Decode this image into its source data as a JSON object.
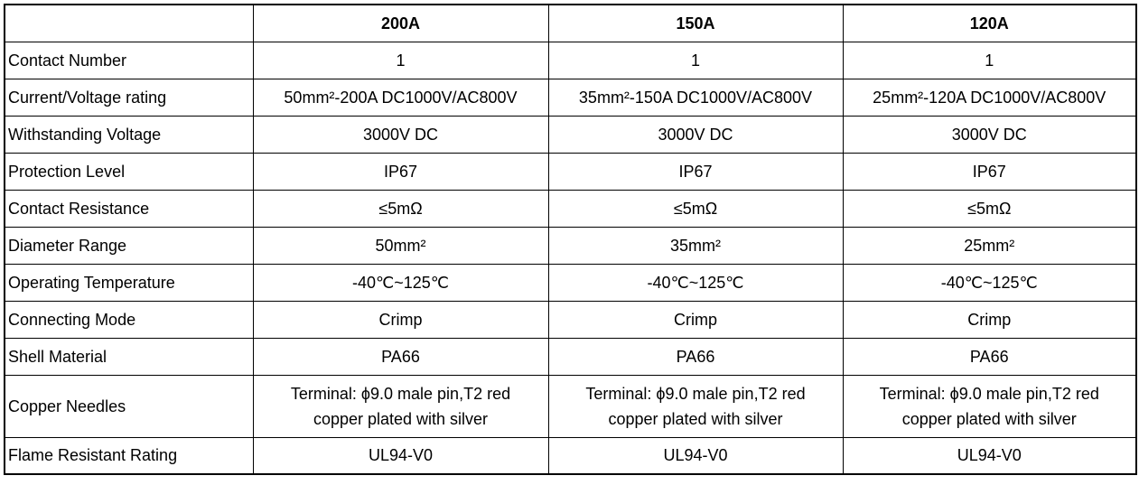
{
  "table": {
    "columns": [
      "200A",
      "150A",
      "120A"
    ],
    "rows": [
      {
        "label": "Contact Number",
        "cells": [
          "1",
          "1",
          "1"
        ]
      },
      {
        "label": "Current/Voltage rating",
        "cells": [
          "50mm²-200A DC1000V/AC800V",
          "35mm²-150A DC1000V/AC800V",
          "25mm²-120A DC1000V/AC800V"
        ]
      },
      {
        "label": "Withstanding Voltage",
        "cells": [
          "3000V DC",
          "3000V DC",
          "3000V DC"
        ]
      },
      {
        "label": "Protection Level",
        "cells": [
          "IP67",
          "IP67",
          "IP67"
        ]
      },
      {
        "label": "Contact Resistance",
        "cells": [
          "≤5mΩ",
          "≤5mΩ",
          "≤5mΩ"
        ]
      },
      {
        "label": "Diameter Range",
        "cells": [
          "50mm²",
          "35mm²",
          "25mm²"
        ]
      },
      {
        "label": "Operating Temperature",
        "cells": [
          "-40℃~125℃",
          "-40℃~125℃",
          "-40℃~125℃"
        ]
      },
      {
        "label": "Connecting Mode",
        "cells": [
          "Crimp",
          "Crimp",
          "Crimp"
        ]
      },
      {
        "label": "Shell Material",
        "cells": [
          "PA66",
          "PA66",
          "PA66"
        ]
      },
      {
        "label": "Copper Needles",
        "cells": [
          "Terminal: ϕ9.0 male pin,T2 red copper plated with silver",
          "Terminal: ϕ9.0 male pin,T2 red copper plated with silver",
          "Terminal: ϕ9.0 male pin,T2 red copper plated with silver"
        ]
      },
      {
        "label": "Flame Resistant Rating",
        "cells": [
          "UL94-V0",
          "UL94-V0",
          "UL94-V0"
        ]
      }
    ]
  }
}
